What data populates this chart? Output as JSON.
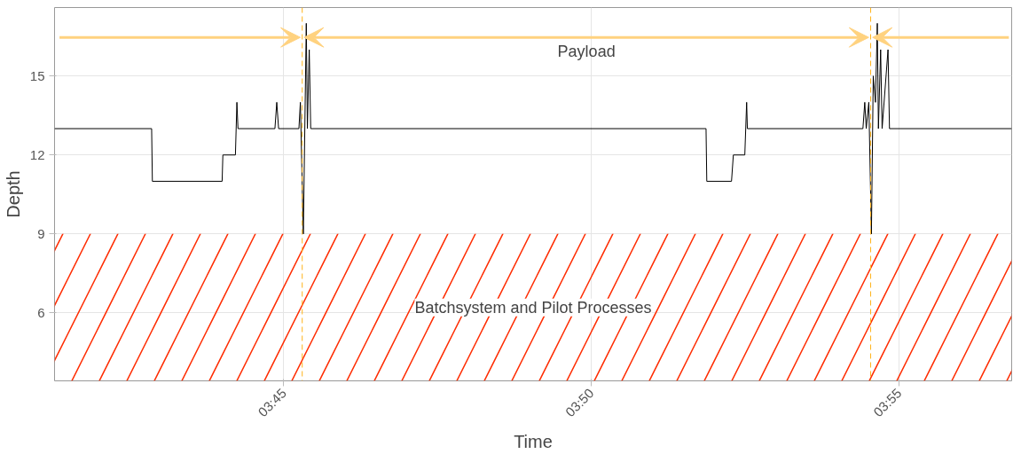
{
  "chart_data": {
    "type": "line",
    "xlabel": "Time",
    "ylabel": "Depth",
    "x": [
      3.6879,
      3.7142,
      3.7144,
      3.7333,
      3.7335,
      3.7369,
      3.7373,
      3.7376,
      3.7476,
      3.7481,
      3.7486,
      3.7541,
      3.7545,
      3.7553,
      3.7561,
      3.7564,
      3.7569,
      3.7573,
      3.8644,
      3.8646,
      3.8713,
      3.8718,
      3.8749,
      3.8754,
      3.8756,
      3.9069,
      3.9074,
      3.9078,
      3.9085,
      3.9092,
      3.9097,
      3.9103,
      3.9108,
      3.9111,
      3.9117,
      3.9121,
      3.9137,
      3.9141,
      3.9472
    ],
    "series": [
      {
        "color": "#000000",
        "values": [
          13,
          13,
          11,
          11,
          12,
          12,
          14,
          13,
          13,
          14,
          13,
          13,
          14,
          9,
          17,
          13,
          16,
          13,
          13,
          11,
          11,
          12,
          12,
          14,
          13,
          13,
          14,
          13,
          14,
          9,
          15,
          14,
          17,
          13,
          16,
          13,
          16,
          13,
          13
        ]
      }
    ],
    "xlim": [
      3.6879,
      3.9472
    ],
    "ylim": [
      3.42,
      17.6
    ],
    "xticks": [
      {
        "value": 3.75,
        "label": "03:45"
      },
      {
        "value": 3.8333,
        "label": "03:50"
      },
      {
        "value": 3.9167,
        "label": "03:55"
      }
    ],
    "yticks": [
      6,
      9,
      12,
      15
    ],
    "grid": true,
    "marker": "none",
    "line_style": "solid",
    "ref_lines": [
      {
        "axis": "x",
        "value": 3.755,
        "color": "#ffb31a",
        "line_style": "dashed"
      },
      {
        "axis": "x",
        "value": 3.909,
        "color": "#ffb31a",
        "line_style": "dashed"
      }
    ],
    "bands": [
      {
        "axis": "y",
        "from": 3.42,
        "to": 9,
        "label": "Batchsystem and Pilot Processes",
        "color": "#ff2a00"
      }
    ],
    "annotations": [
      "Payload"
    ]
  }
}
